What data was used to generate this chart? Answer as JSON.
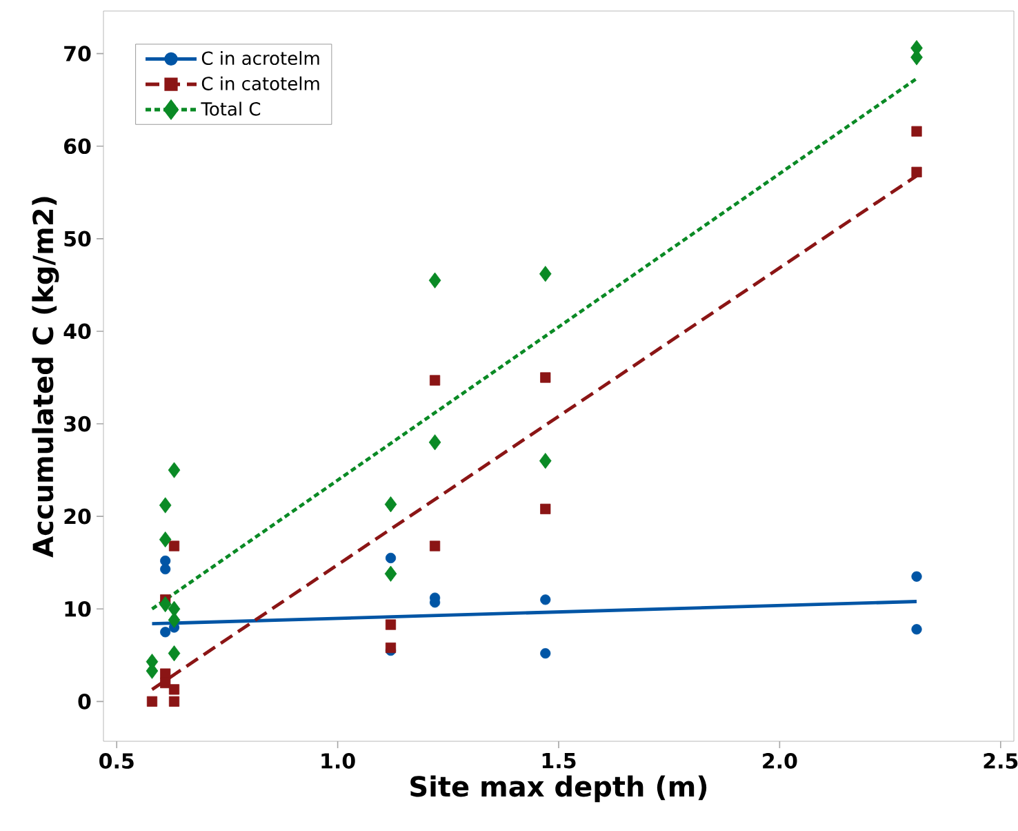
{
  "chart_data": {
    "type": "scatter",
    "xlabel": "Site max depth (m)",
    "ylabel": "Accumulated C (kg/m2)",
    "xlim": [
      0.47,
      2.53
    ],
    "ylim": [
      -4.3,
      74.6
    ],
    "xticks": [
      {
        "value": 0.5,
        "label": "0.5"
      },
      {
        "value": 1.0,
        "label": "1.0"
      },
      {
        "value": 1.5,
        "label": "1.5"
      },
      {
        "value": 2.0,
        "label": "2.0"
      },
      {
        "value": 2.5,
        "label": "2.5"
      }
    ],
    "yticks": [
      0,
      10,
      20,
      30,
      40,
      50,
      60,
      70
    ],
    "legend": "top left",
    "grid": false,
    "series": [
      {
        "name": "C in acrotelm",
        "marker": "circle",
        "line_style": "solid",
        "color": "#0055a5",
        "x": [
          0.61,
          0.61,
          0.61,
          0.63,
          1.12,
          1.12,
          1.22,
          1.22,
          1.47,
          1.47,
          2.31,
          2.31
        ],
        "values": [
          15.2,
          14.3,
          7.5,
          8.0,
          15.5,
          5.5,
          11.2,
          10.7,
          11.0,
          5.2,
          13.5,
          7.8
        ]
      },
      {
        "name": "C in catotelm",
        "marker": "square",
        "line_style": "dashed",
        "color": "#8b1515",
        "x": [
          0.58,
          0.61,
          0.61,
          0.61,
          0.63,
          0.63,
          0.63,
          1.12,
          1.12,
          1.22,
          1.22,
          1.47,
          1.47,
          2.31,
          2.31
        ],
        "values": [
          0,
          11,
          3,
          2,
          16.8,
          1.3,
          0,
          8.3,
          5.8,
          34.7,
          16.8,
          35,
          20.8,
          61.6,
          57.2
        ]
      },
      {
        "name": "Total C",
        "marker": "diamond",
        "line_style": "dotted",
        "color": "#0a8a25",
        "x": [
          0.58,
          0.58,
          0.61,
          0.61,
          0.61,
          0.63,
          0.63,
          0.63,
          0.63,
          1.12,
          1.12,
          1.22,
          1.22,
          1.47,
          1.47,
          2.31,
          2.31
        ],
        "values": [
          4.3,
          3.3,
          21.2,
          17.5,
          10.5,
          25,
          10,
          8.8,
          5.2,
          21.3,
          13.8,
          45.5,
          28,
          46.2,
          26,
          70.6,
          69.6
        ]
      },
      {
        "type": "line",
        "line_style": "solid",
        "color": "#0055a5",
        "x": [
          0.58,
          2.31
        ],
        "values": [
          8.4,
          10.8
        ]
      },
      {
        "type": "line",
        "line_style": "dashed",
        "color": "#8b1515",
        "x": [
          0.58,
          2.31
        ],
        "values": [
          1.3,
          56.8
        ]
      },
      {
        "type": "line",
        "line_style": "dotted",
        "color": "#0a8a25",
        "x": [
          0.58,
          2.31
        ],
        "values": [
          10.0,
          67.3
        ]
      }
    ]
  }
}
